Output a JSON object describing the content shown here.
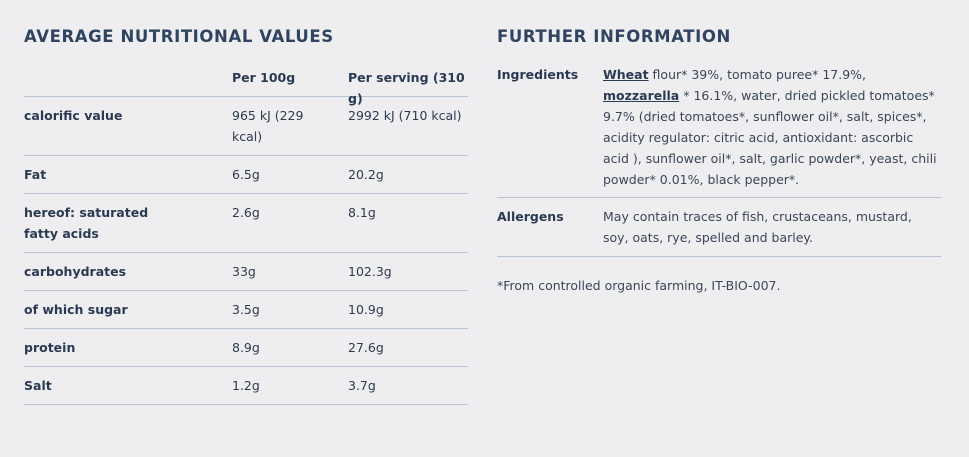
{
  "nutrition": {
    "title": "AVERAGE NUTRITIONAL VALUES",
    "header": {
      "label": "",
      "per100": "Per 100g",
      "perServing": "Per serving (310 g)"
    },
    "rows": [
      {
        "label": "calorific value",
        "per100": "965 kJ (229 kcal)",
        "perServing": "2992 kJ (710 kcal)"
      },
      {
        "label": "Fat",
        "per100": "6.5g",
        "perServing": "20.2g"
      },
      {
        "label": "hereof: saturated fatty acids",
        "per100": "2.6g",
        "perServing": "8.1g"
      },
      {
        "label": "carbohydrates",
        "per100": "33g",
        "perServing": "102.3g"
      },
      {
        "label": "of which sugar",
        "per100": "3.5g",
        "perServing": "10.9g"
      },
      {
        "label": "protein",
        "per100": "8.9g",
        "perServing": "27.6g"
      },
      {
        "label": "Salt",
        "per100": "1.2g",
        "perServing": "3.7g"
      }
    ]
  },
  "further": {
    "title": "FURTHER INFORMATION",
    "ingredients": {
      "label": "Ingredients",
      "wheat": "Wheat",
      "part1": " flour* 39%, tomato puree* 17.9%,",
      "mozzarella": " mozzarella",
      "part2": " * 16.1%, water, dried pickled tomatoes* 9.7% (dried tomatoes*, sunflower oil*, salt, spices*, acidity regulator: citric acid, antioxidant: ascorbic acid ), sunflower oil*, salt, garlic powder*, yeast, chili powder* 0.01%, black pepper*."
    },
    "allergens": {
      "label": "Allergens",
      "text": "May contain traces of fish, crustaceans, mustard, soy, oats, rye, spelled and barley."
    },
    "footnote": "*From controlled organic farming, IT-BIO-007."
  }
}
